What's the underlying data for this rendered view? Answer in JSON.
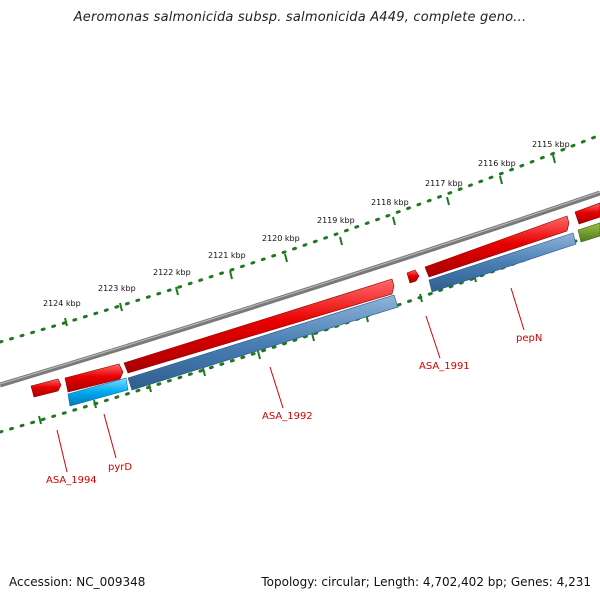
{
  "title": "Aeromonas salmonicida subsp. salmonicida A449, complete geno...",
  "footer": {
    "accession": "Accession: NC_009348",
    "summary": "Topology: circular; Length: 4,702,402 bp; Genes: 4,231"
  },
  "ruler_ticks": [
    "2124 kbp",
    "2123 kbp",
    "2122 kbp",
    "2121 kbp",
    "2120 kbp",
    "2119 kbp",
    "2118 kbp",
    "2117 kbp",
    "2116 kbp",
    "2115 kbp"
  ],
  "gene_labels": [
    "ASA_1994",
    "pyrD",
    "ASA_1992",
    "ASA_1991",
    "pepN"
  ],
  "colors": {
    "forward_feature": "#e00000",
    "cds": "#4a7fb5",
    "highlight_cds": "#00aaee",
    "other_feature": "#5a8a1e",
    "backbone": "#808080",
    "ruler": "#1e7a1e",
    "label": "#d40000"
  }
}
